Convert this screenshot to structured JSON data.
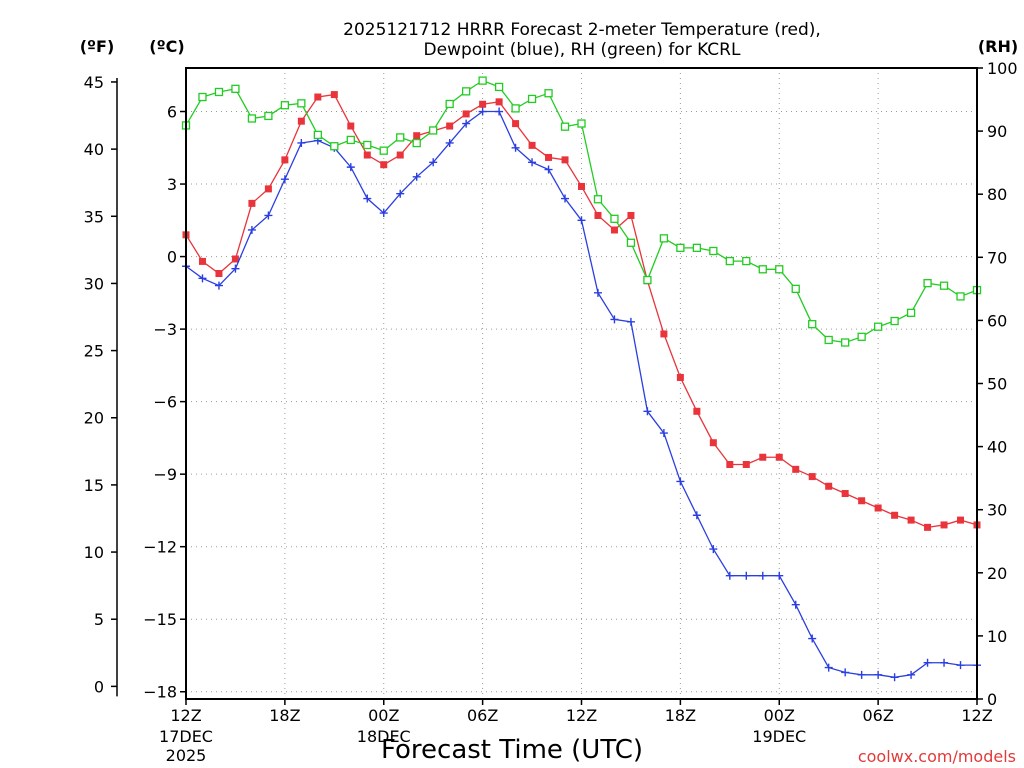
{
  "colors": {
    "temp": "#e8343a",
    "dewpoint": "#2b3fe0",
    "rh": "#22cc22",
    "credit": "#e23a3a"
  },
  "chart_data": {
    "type": "line",
    "title_line1": "2025121712 HRRR Forecast 2-meter Temperature (red),",
    "title_line2": "Dewpoint (blue), RH (green) for KCRL",
    "xlabel": "Forecast Time (UTC)",
    "credit": "coolwx.com/models",
    "units": {
      "fahrenheit": "(ºF)",
      "celsius": "(ºC)",
      "rh": "(RH)"
    },
    "forecast_hours": [
      0,
      1,
      2,
      3,
      4,
      5,
      6,
      7,
      8,
      9,
      10,
      11,
      12,
      13,
      14,
      15,
      16,
      17,
      18,
      19,
      20,
      21,
      22,
      23,
      24,
      25,
      26,
      27,
      28,
      29,
      30,
      31,
      32,
      33,
      34,
      35,
      36,
      37,
      38,
      39,
      40,
      41,
      42,
      43,
      44,
      45,
      46,
      47,
      48
    ],
    "x_ticks": [
      {
        "hour": 0,
        "l1": "12Z",
        "l2": "17DEC",
        "l3": "2025"
      },
      {
        "hour": 6,
        "l1": "18Z",
        "l2": "",
        "l3": ""
      },
      {
        "hour": 12,
        "l1": "00Z",
        "l2": "18DEC",
        "l3": ""
      },
      {
        "hour": 18,
        "l1": "06Z",
        "l2": "",
        "l3": ""
      },
      {
        "hour": 24,
        "l1": "12Z",
        "l2": "",
        "l3": ""
      },
      {
        "hour": 30,
        "l1": "18Z",
        "l2": "",
        "l3": ""
      },
      {
        "hour": 36,
        "l1": "00Z",
        "l2": "19DEC",
        "l3": ""
      },
      {
        "hour": 42,
        "l1": "06Z",
        "l2": "",
        "l3": ""
      },
      {
        "hour": 48,
        "l1": "12Z",
        "l2": "",
        "l3": ""
      }
    ],
    "ylim_celsius": [
      -18.3,
      7.8
    ],
    "ylim_rh": [
      0,
      100
    ],
    "left_ticks_celsius": [
      6,
      3,
      0,
      -3,
      -6,
      -9,
      -12,
      -15,
      -18
    ],
    "left_ticks_fahrenheit": [
      45,
      40,
      35,
      30,
      25,
      20,
      15,
      10,
      5,
      0
    ],
    "right_ticks_rh": [
      100,
      90,
      80,
      70,
      60,
      50,
      40,
      30,
      20,
      10,
      0
    ],
    "series": [
      {
        "name": "Temperature (red)",
        "units": "C",
        "values": [
          0.9,
          -0.2,
          -0.7,
          -0.1,
          2.2,
          2.8,
          4.0,
          5.6,
          6.6,
          6.7,
          5.4,
          4.2,
          3.8,
          4.2,
          5.0,
          5.2,
          5.4,
          5.9,
          6.3,
          6.4,
          5.5,
          4.6,
          4.1,
          4.0,
          2.9,
          1.7,
          1.1,
          1.7,
          -1.0,
          -3.2,
          -5.0,
          -6.4,
          -7.7,
          -8.6,
          -8.6,
          -8.3,
          -8.3,
          -8.8,
          -9.1,
          -9.5,
          -9.8,
          -10.1,
          -10.4,
          -10.7,
          -10.9,
          -11.2,
          -11.1,
          -10.9,
          -11.1
        ]
      },
      {
        "name": "Dewpoint (blue)",
        "units": "C",
        "values": [
          -0.4,
          -0.9,
          -1.2,
          -0.5,
          1.1,
          1.7,
          3.2,
          4.7,
          4.8,
          4.5,
          3.7,
          2.4,
          1.8,
          2.6,
          3.3,
          3.9,
          4.7,
          5.5,
          6.0,
          6.0,
          4.5,
          3.9,
          3.6,
          2.4,
          1.5,
          -1.5,
          -2.6,
          -2.7,
          -6.4,
          -7.3,
          -9.3,
          -10.7,
          -12.1,
          -13.2,
          -13.2,
          -13.2,
          -13.2,
          -14.4,
          -15.8,
          -17.0,
          -17.2,
          -17.3,
          -17.3,
          -17.4,
          -17.3,
          -16.8,
          -16.8,
          -16.9,
          -16.9
        ]
      },
      {
        "name": "RH (green)",
        "units": "%",
        "values": [
          90.9,
          95.4,
          96.2,
          96.7,
          92.0,
          92.4,
          94.1,
          94.4,
          89.4,
          87.6,
          88.6,
          87.8,
          86.9,
          89.0,
          88.1,
          90.1,
          94.3,
          96.3,
          98.0,
          97.0,
          93.6,
          95.1,
          96.0,
          90.7,
          91.2,
          79.2,
          76.1,
          72.3,
          66.4,
          73.0,
          71.5,
          71.5,
          71.0,
          69.4,
          69.4,
          68.1,
          68.1,
          65.0,
          59.4,
          56.9,
          56.5,
          57.4,
          59.0,
          59.9,
          61.2,
          65.9,
          65.5,
          63.8,
          64.8
        ]
      }
    ]
  }
}
